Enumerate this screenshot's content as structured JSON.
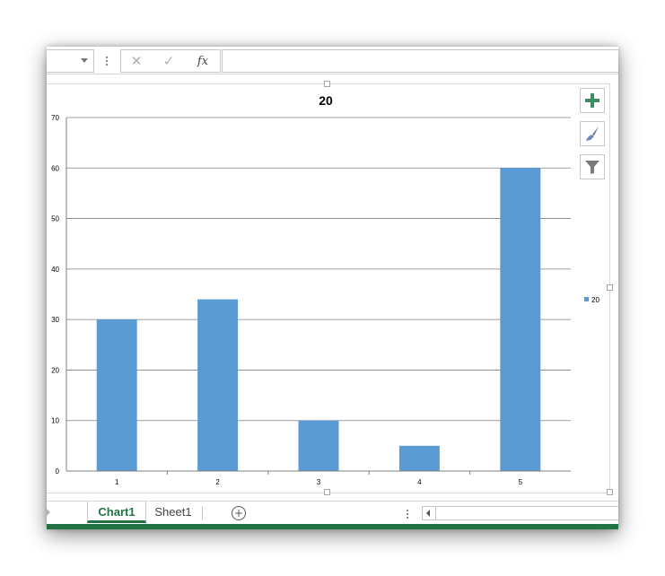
{
  "formula_bar": {
    "cancel_icon": "close-icon",
    "enter_icon": "check-icon",
    "fx_label": "fx",
    "formula_value": ""
  },
  "chart_tools": {
    "elements_icon": "plus-icon",
    "styles_icon": "paintbrush-icon",
    "filters_icon": "funnel-icon"
  },
  "sheet_tabs": {
    "tabs": [
      {
        "label": "Chart1",
        "active": true
      },
      {
        "label": "Sheet1",
        "active": false
      }
    ],
    "add_icon": "plus-circle-icon"
  },
  "colors": {
    "bar": "#5b9bd5",
    "accent": "#217346",
    "gridline": "#7f7f7f"
  },
  "chart_data": {
    "type": "bar",
    "title": "20",
    "categories": [
      "1",
      "2",
      "3",
      "4",
      "5"
    ],
    "series": [
      {
        "name": "20",
        "values": [
          30,
          34,
          10,
          5,
          60
        ]
      }
    ],
    "ylim": [
      0,
      70
    ],
    "yticks": [
      0,
      10,
      20,
      30,
      40,
      50,
      60,
      70
    ],
    "grid": true,
    "legend": "right"
  }
}
